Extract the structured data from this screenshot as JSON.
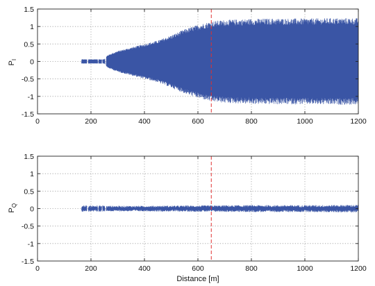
{
  "chart_data": [
    {
      "type": "line",
      "ylabel": "P",
      "ylabel_subscript": "I",
      "xlabel": "",
      "xlim": [
        0,
        1200
      ],
      "ylim": [
        -1.5,
        1.5
      ],
      "xticks": [
        0,
        200,
        400,
        600,
        800,
        1000,
        1200
      ],
      "yticks": [
        1.5,
        1,
        0.5,
        0,
        -0.5,
        -1,
        -1.5
      ],
      "xtick_labels": [
        "0",
        "200",
        "400",
        "600",
        "800",
        "1000",
        "1200"
      ],
      "ytick_labels": [
        "1.5",
        "1",
        "0.5",
        "0",
        "-0.5",
        "-1",
        "-1.5"
      ],
      "grid": true,
      "marker_line": {
        "x": 650,
        "color": "#e03030",
        "style": "dashed"
      },
      "series": [
        {
          "color": "#3a55a5",
          "kind": "oscillating envelope",
          "x": [
            165,
            185,
            250,
            262,
            300,
            350,
            400,
            450,
            500,
            550,
            600,
            650,
            700,
            800,
            900,
            1000,
            1100,
            1200
          ],
          "amplitude": [
            0.06,
            0.06,
            0.06,
            0.18,
            0.3,
            0.4,
            0.5,
            0.6,
            0.75,
            0.92,
            1.05,
            1.15,
            1.19,
            1.22,
            1.23,
            1.23,
            1.24,
            1.24
          ],
          "gaps": [
            [
              185,
              190
            ],
            [
              225,
              228
            ],
            [
              240,
              243
            ],
            [
              253,
              257
            ]
          ]
        }
      ]
    },
    {
      "type": "line",
      "ylabel": "P",
      "ylabel_subscript": "Q",
      "xlabel": "Distance [m]",
      "xlim": [
        0,
        1200
      ],
      "ylim": [
        -1.5,
        1.5
      ],
      "xticks": [
        0,
        200,
        400,
        600,
        800,
        1000,
        1200
      ],
      "yticks": [
        1.5,
        1,
        0.5,
        0,
        -0.5,
        -1,
        -1.5
      ],
      "xtick_labels": [
        "0",
        "200",
        "400",
        "600",
        "800",
        "1000",
        "1200"
      ],
      "ytick_labels": [
        "1.5",
        "1",
        "0.5",
        "0",
        "-0.5",
        "-1",
        "-1.5"
      ],
      "grid": true,
      "marker_line": {
        "x": 650,
        "color": "#e03030",
        "style": "dashed"
      },
      "series": [
        {
          "color": "#3a55a5",
          "kind": "noise band",
          "x": [
            165,
            185,
            250,
            262,
            400,
            600,
            800,
            1000,
            1200
          ],
          "amplitude": [
            0.09,
            0.09,
            0.09,
            0.08,
            0.08,
            0.09,
            0.1,
            0.1,
            0.11
          ],
          "gaps": [
            [
              185,
              190
            ],
            [
              225,
              228
            ],
            [
              240,
              243
            ],
            [
              253,
              257
            ]
          ]
        }
      ]
    }
  ]
}
